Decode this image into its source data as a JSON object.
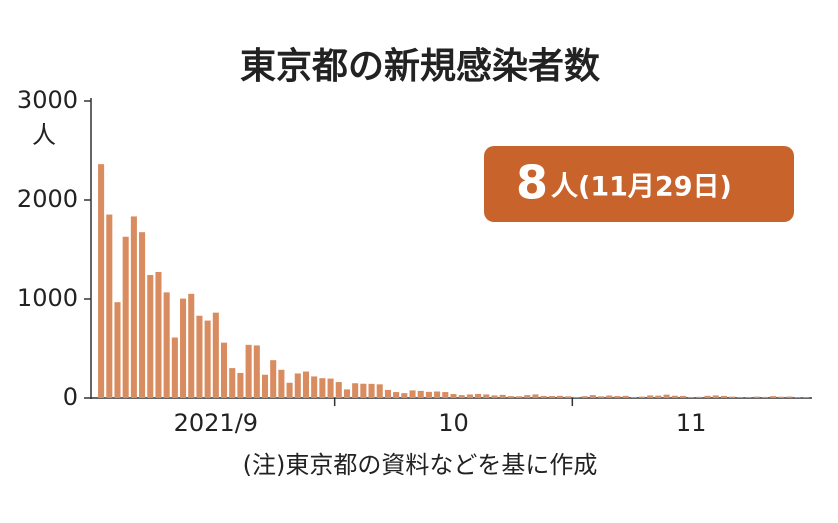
{
  "chart_data": {
    "type": "bar",
    "title": "東京都の新規感染者数",
    "y_unit": "人",
    "annotation": {
      "number": "8",
      "text": "人(11月29日)"
    },
    "note": "(注)東京都の資料などを基に作成",
    "color": "#d98c5f",
    "categories": [
      null,
      null,
      null,
      null,
      null,
      null,
      null,
      null,
      null,
      null,
      null,
      null,
      null,
      null,
      "2021/9",
      null,
      null,
      null,
      null,
      null,
      null,
      null,
      null,
      null,
      null,
      null,
      null,
      null,
      null,
      null,
      null,
      null,
      null,
      null,
      null,
      null,
      null,
      null,
      null,
      null,
      null,
      null,
      null,
      "10",
      null,
      null,
      null,
      null,
      null,
      null,
      null,
      null,
      null,
      null,
      null,
      null,
      null,
      null,
      null,
      null,
      null,
      null,
      null,
      null,
      null,
      null,
      null,
      null,
      null,
      null,
      null,
      null,
      "11",
      null,
      null,
      null,
      null,
      null,
      null,
      null,
      null,
      null,
      null,
      null,
      null,
      null,
      null
    ],
    "values": [
      2362,
      1853,
      968,
      1629,
      1834,
      1675,
      1242,
      1273,
      1067,
      611,
      1004,
      1052,
      831,
      782,
      862,
      559,
      302,
      253,
      537,
      531,
      235,
      382,
      285,
      154,
      248,
      267,
      218,
      200,
      196,
      161,
      87,
      149,
      144,
      143,
      138,
      82,
      60,
      49,
      77,
      72,
      62,
      66,
      60,
      40,
      29,
      36,
      41,
      36,
      26,
      32,
      19,
      17,
      29,
      36,
      21,
      20,
      22,
      17,
      9,
      18,
      29,
      17,
      25,
      20,
      22,
      9,
      14,
      26,
      24,
      34,
      23,
      21,
      7,
      12,
      22,
      26,
      21,
      14,
      8,
      7,
      14,
      11,
      19,
      13,
      15,
      9,
      8
    ],
    "ylim": [
      0,
      3000
    ],
    "yticks": [
      0,
      1000,
      2000,
      3000
    ]
  }
}
